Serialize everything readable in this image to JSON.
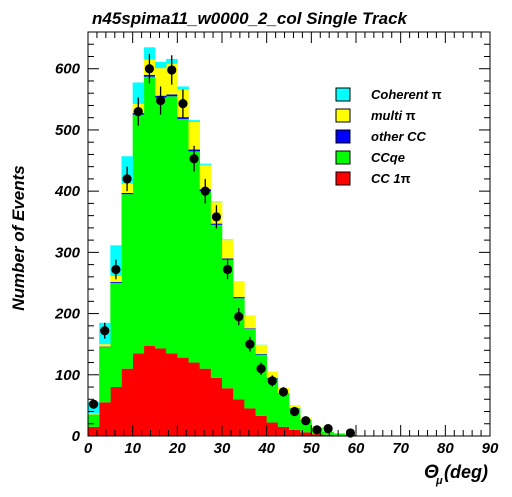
{
  "chart_data": {
    "type": "bar",
    "title": "n45spima11_w0000_2_col Single Track",
    "ylabel": "Number of Events",
    "xlabel_main": "Θ",
    "xlabel_sub": "μ",
    "xlabel_unit": "(deg)",
    "xlim": [
      0,
      90
    ],
    "ylim": [
      0,
      660
    ],
    "bin_width": 2.5,
    "x_ticks": [
      "0",
      "10",
      "20",
      "30",
      "40",
      "50",
      "60",
      "70",
      "80",
      "90"
    ],
    "y_ticks": [
      "0",
      "100",
      "200",
      "300",
      "400",
      "500",
      "600"
    ],
    "grid": false,
    "legend_position": "top-right",
    "colors": {
      "coherent": "#00ffff",
      "multi": "#ffff00",
      "other_cc": "#0000ff",
      "ccqe": "#00ff00",
      "cc1pi": "#ff0000",
      "data": "#000000"
    },
    "series": [
      {
        "name": "CC 1π",
        "key": "cc1pi",
        "values": [
          15,
          55,
          80,
          110,
          135,
          147,
          143,
          135,
          128,
          120,
          110,
          95,
          78,
          60,
          45,
          33,
          22,
          15,
          10,
          6,
          3,
          2,
          1,
          0.5
        ]
      },
      {
        "name": "CCqe",
        "key": "ccqe",
        "values": [
          20,
          90,
          170,
          285,
          390,
          440,
          410,
          420,
          390,
          345,
          290,
          250,
          210,
          165,
          130,
          100,
          72,
          55,
          35,
          20,
          10,
          5,
          3,
          1.5
        ]
      },
      {
        "name": "other CC",
        "key": "other_cc",
        "values": [
          0.3,
          1,
          1.5,
          2,
          2.5,
          3,
          3,
          3,
          3,
          3,
          3,
          2,
          2,
          2,
          1,
          1,
          1,
          0.5,
          0.5,
          0.3,
          0.2,
          0,
          0,
          0
        ]
      },
      {
        "name": "multi π",
        "key": "multi",
        "values": [
          2,
          4,
          10,
          15,
          15,
          25,
          45,
          50,
          45,
          45,
          40,
          35,
          30,
          25,
          20,
          15,
          10,
          8,
          5,
          3,
          2,
          1,
          1,
          0.5
        ]
      },
      {
        "name": "Coherent π",
        "key": "coherent",
        "values": [
          18,
          35,
          50,
          45,
          35,
          20,
          10,
          8,
          5,
          3,
          2,
          1,
          1,
          0.5,
          0.5,
          0.3,
          0.2,
          0,
          0,
          0,
          0,
          0,
          0,
          0
        ]
      }
    ],
    "data_points": {
      "x": [
        1.25,
        3.75,
        6.25,
        8.75,
        11.25,
        13.75,
        16.25,
        18.75,
        21.25,
        23.75,
        26.25,
        28.75,
        31.25,
        33.75,
        36.25,
        38.75,
        41.25,
        43.75,
        46.25,
        48.75,
        51.25,
        53.75,
        58.75
      ],
      "y": [
        52,
        172,
        272,
        420,
        530,
        600,
        548,
        598,
        543,
        453,
        400,
        358,
        272,
        195,
        150,
        110,
        90,
        72,
        40,
        25,
        10,
        12,
        5
      ],
      "err": [
        7,
        13,
        16,
        20,
        23,
        24,
        23,
        24,
        23,
        21,
        20,
        19,
        16,
        14,
        12,
        10,
        9,
        8,
        6,
        5,
        3,
        3,
        2
      ]
    },
    "legend": [
      {
        "label_main": "Coherent ",
        "label_greek": "π",
        "key": "coherent"
      },
      {
        "label_main": "multi ",
        "label_greek": "π",
        "key": "multi"
      },
      {
        "label_main": "other CC",
        "label_greek": "",
        "key": "other_cc"
      },
      {
        "label_main": "CCqe",
        "label_greek": "",
        "key": "ccqe"
      },
      {
        "label_main": "CC 1",
        "label_greek": "π",
        "key": "cc1pi"
      }
    ]
  }
}
